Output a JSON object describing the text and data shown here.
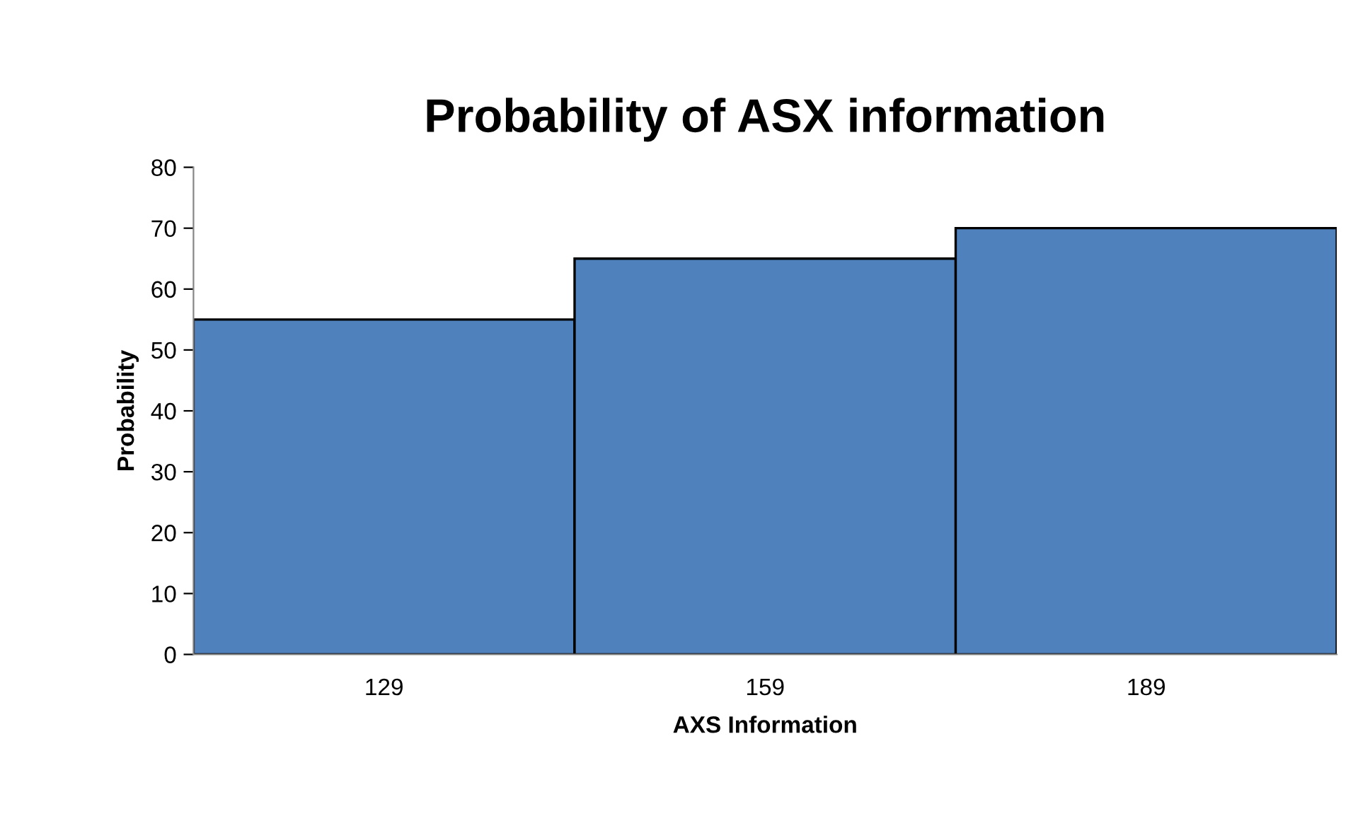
{
  "chart_data": {
    "type": "bar",
    "title": "Probability of ASX information",
    "xlabel": "AXS Information",
    "ylabel": "Probability",
    "categories": [
      "129",
      "159",
      "189"
    ],
    "values": [
      55,
      65,
      70
    ],
    "color": "#4f81bd",
    "ylim": [
      0,
      80
    ],
    "yticks": [
      0,
      10,
      20,
      30,
      40,
      50,
      60,
      70,
      80
    ],
    "grid": false,
    "legend": false
  }
}
